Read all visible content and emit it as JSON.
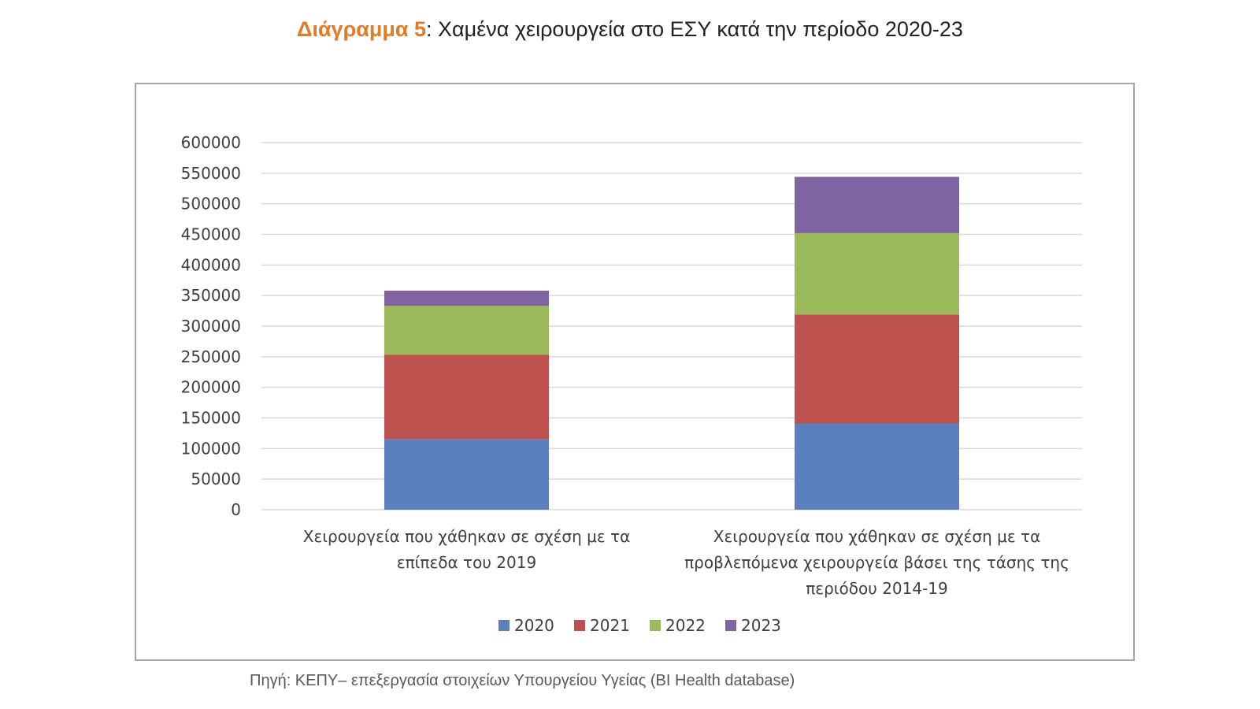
{
  "header": {
    "title_prefix": "Διάγραμμα 5",
    "title_text": ": Χαμένα χειρουργεία στο ΕΣΥ κατά την περίοδο 2020-23"
  },
  "footer": {
    "source": "Πηγή: ΚΕΠΥ– επεξεργασία στοιχείων Υπουργείου Υγείας (BI Health database)"
  },
  "colors": {
    "title_prefix": "#e07b28",
    "grid": "#d9d9d9",
    "frame": "#a6a6a6"
  },
  "chart_data": {
    "type": "bar",
    "stacked": true,
    "title": "",
    "xlabel": "",
    "ylabel": "",
    "ylim": [
      0,
      600000
    ],
    "yticks": [
      0,
      50000,
      100000,
      150000,
      200000,
      250000,
      300000,
      350000,
      400000,
      450000,
      500000,
      550000,
      600000
    ],
    "grid": true,
    "legend_position": "bottom",
    "categories": [
      [
        "Χειρουργεία που χάθηκαν σε σχέση με τα",
        "επίπεδα του 2019"
      ],
      [
        "Χειρουργεία που χάθηκαν σε σχέση με τα",
        "προβλεπόμενα χειρουργεία βάσει της τάσης της",
        "περιόδου 2014-19"
      ]
    ],
    "series": [
      {
        "name": "2020",
        "color": "#5b80bd",
        "values": [
          115000,
          141000
        ]
      },
      {
        "name": "2021",
        "color": "#bc514e",
        "values": [
          138000,
          178000
        ]
      },
      {
        "name": "2022",
        "color": "#9bbb5a",
        "values": [
          80000,
          133000
        ]
      },
      {
        "name": "2023",
        "color": "#8064a2",
        "values": [
          25000,
          92000
        ]
      }
    ]
  }
}
